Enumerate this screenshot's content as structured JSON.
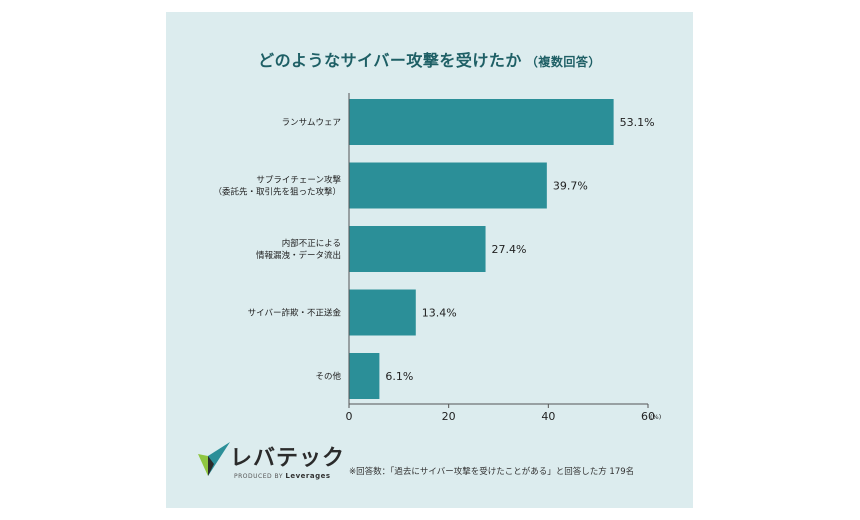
{
  "header": {
    "title": "どのようなサイバー攻撃を受けたか",
    "subtitle": "（複数回答）"
  },
  "chart_data": {
    "type": "bar",
    "orientation": "horizontal",
    "title": "どのようなサイバー攻撃を受けたか（複数回答）",
    "categories": [
      [
        "ランサムウェア"
      ],
      [
        "サプライチェーン攻撃",
        "（委託先・取引先を狙った攻撃）"
      ],
      [
        "内部不正による",
        "情報漏洩・データ流出"
      ],
      [
        "サイバー詐欺・不正送金"
      ],
      [
        "その他"
      ]
    ],
    "values": [
      53.1,
      39.7,
      27.4,
      13.4,
      6.1
    ],
    "value_labels": [
      "53.1%",
      "39.7%",
      "27.4%",
      "13.4%",
      "6.1%"
    ],
    "xlim": [
      0,
      60
    ],
    "xticks": [
      0,
      20,
      40,
      60
    ],
    "xtick_labels": [
      "0",
      "20",
      "40",
      "60"
    ],
    "x_unit": "(%)",
    "bar_color": "#2b8f98",
    "grid": false
  },
  "branding": {
    "logo_name": "レバテック",
    "tagline_prefix": "PRODUCED BY",
    "tagline_brand": "Leverages"
  },
  "footnote": "※回答数：「過去にサイバー攻撃を受けたことがある」と回答した方 179名",
  "colors": {
    "background": "#dcecee",
    "title": "#1e5f65",
    "bar": "#2b8f98",
    "logo_dark": "#2b2b2b",
    "logo_teal": "#2b8f98",
    "logo_green": "#8fc641"
  }
}
